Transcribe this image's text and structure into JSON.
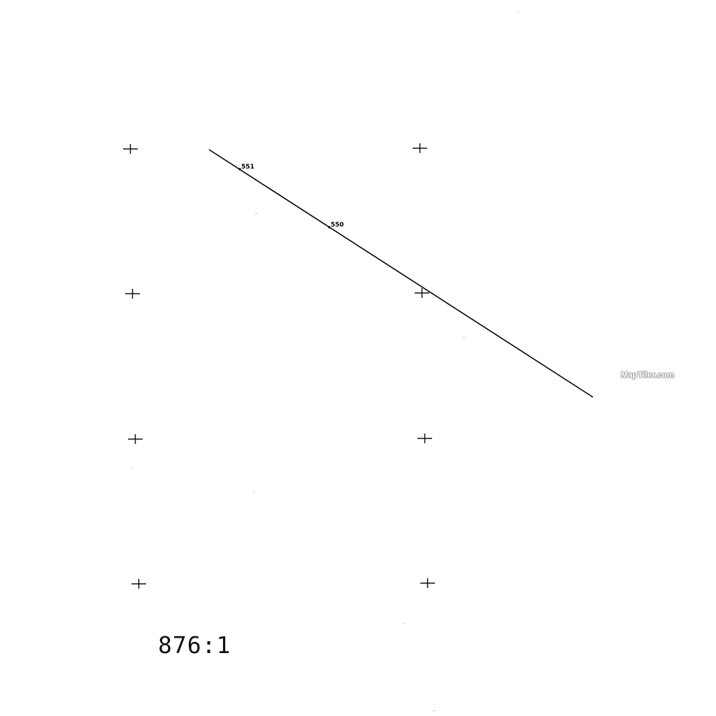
{
  "map": {
    "scale_ratio": "876:1",
    "attribution": "MapTiler.com",
    "colors": {
      "background": "#ffffff",
      "line": "#000000",
      "grid_cross": "#111111",
      "attribution_outline": "#9a9a9a"
    },
    "stations": [
      {
        "label": "551"
      },
      {
        "label": "550"
      }
    ]
  }
}
